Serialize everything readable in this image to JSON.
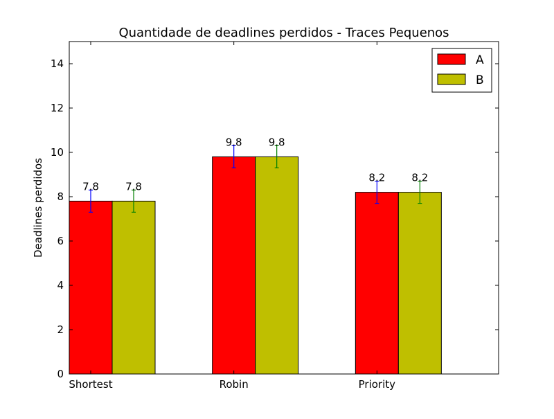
{
  "chart_data": {
    "type": "bar",
    "title": "Quantidade de deadlines perdidos - Traces Pequenos",
    "xlabel": "",
    "ylabel": "Deadlines perdidos",
    "categories": [
      "Shortest",
      "Robin",
      "Priority"
    ],
    "series": [
      {
        "name": "A",
        "values": [
          7.8,
          9.8,
          8.2
        ],
        "errors": [
          0.5,
          0.5,
          0.5
        ],
        "color": "#ff0000",
        "error_color": "#0000ff"
      },
      {
        "name": "B",
        "values": [
          7.8,
          9.8,
          8.2
        ],
        "errors": [
          0.5,
          0.5,
          0.5
        ],
        "color": "#bfbf00",
        "error_color": "#008000"
      }
    ],
    "data_labels": [
      [
        "7.8",
        "9.8",
        "8.2"
      ],
      [
        "7.8",
        "9.8",
        "8.2"
      ]
    ],
    "ylim": [
      0,
      15
    ],
    "yticks": [
      0,
      2,
      4,
      6,
      8,
      10,
      12,
      14
    ],
    "ytick_labels": [
      "0",
      "2",
      "4",
      "6",
      "8",
      "10",
      "12",
      "14"
    ],
    "grid": false,
    "legend_position": "top-right"
  }
}
